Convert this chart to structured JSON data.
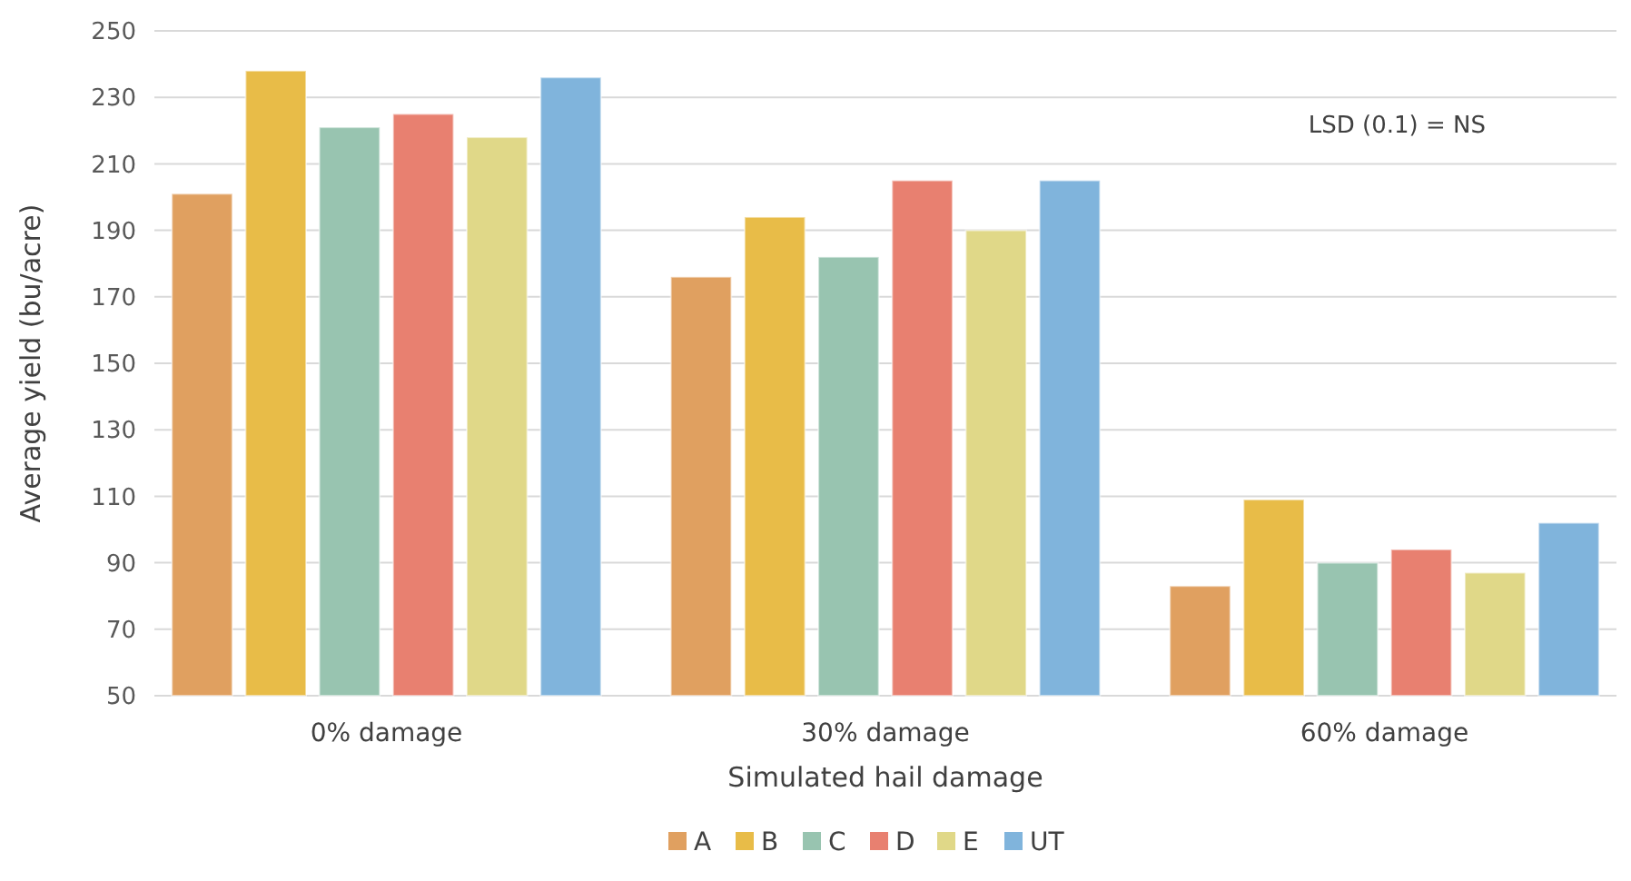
{
  "chart_data": {
    "type": "bar",
    "xlabel": "Simulated hail damage",
    "ylabel": "Average yield (bu/acre)",
    "categories": [
      "0% damage",
      "30% damage",
      "60% damage"
    ],
    "series": [
      {
        "name": "A",
        "color": "#e0a060",
        "values": [
          201,
          176,
          83
        ]
      },
      {
        "name": "B",
        "color": "#e8bc48",
        "values": [
          238,
          194,
          109
        ]
      },
      {
        "name": "C",
        "color": "#98c4b0",
        "values": [
          221,
          182,
          90
        ]
      },
      {
        "name": "D",
        "color": "#e88070",
        "values": [
          225,
          205,
          94
        ]
      },
      {
        "name": "E",
        "color": "#e0d888",
        "values": [
          218,
          190,
          87
        ]
      },
      {
        "name": "UT",
        "color": "#80b4dc",
        "values": [
          236,
          205,
          102
        ]
      }
    ],
    "ylim": [
      50,
      250
    ],
    "yticks": [
      50,
      70,
      90,
      110,
      130,
      150,
      170,
      190,
      210,
      230,
      250
    ],
    "grid": "y",
    "legend": "bottom",
    "annotations": [
      "LSD (0.1) = NS"
    ]
  }
}
